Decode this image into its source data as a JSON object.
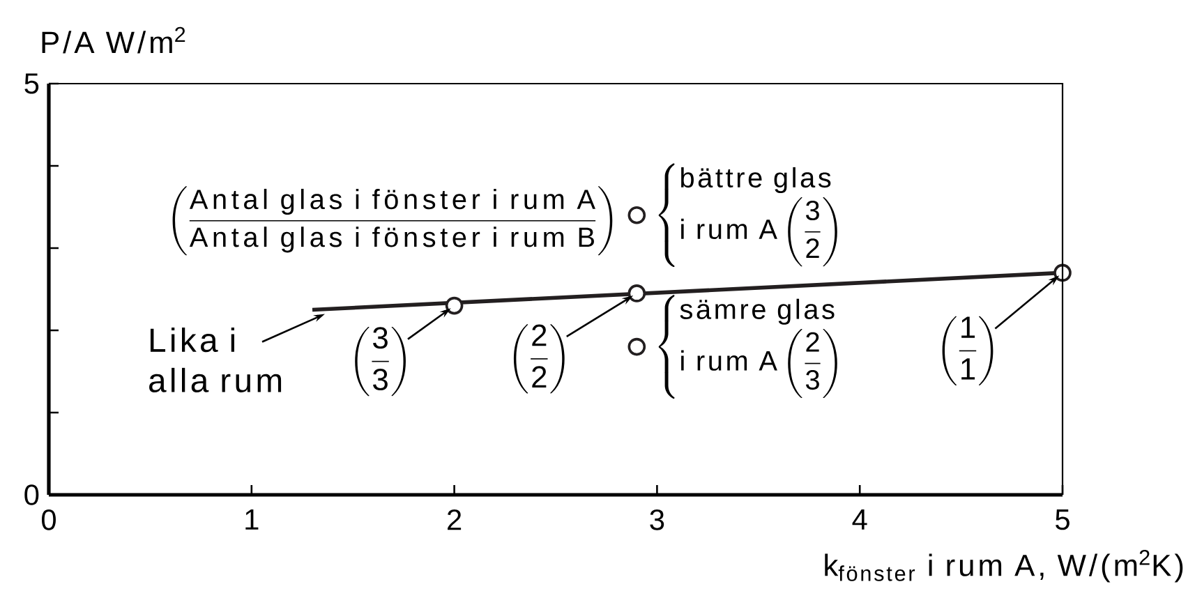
{
  "chart_data": {
    "type": "line",
    "ylabel": "P/A W/m$^{2}$",
    "xlabel": "k$_{fönster}$ i rum A, W/(m$^{2}$K)",
    "xlim": [
      0,
      5
    ],
    "ylim": [
      0,
      5
    ],
    "xticks": [
      0,
      1,
      2,
      3,
      4,
      5
    ],
    "yticks": [
      0,
      {
        "value": 1,
        "label": null
      },
      {
        "value": 2,
        "label": null
      },
      {
        "value": 3,
        "label": null
      },
      {
        "value": 4,
        "label": null
      },
      5
    ],
    "marker": "circle",
    "series": [
      {
        "marker": "none",
        "color": "#231f20",
        "x": [
          1.3,
          5
        ],
        "values": [
          2.25,
          2.7
        ]
      },
      {
        "type": "scatter",
        "color": "#231f20",
        "x": [
          2,
          2.9,
          5
        ],
        "values": [
          2.3,
          2.45,
          2.7
        ]
      },
      {
        "type": "scatter",
        "color": "#231f20",
        "x": [
          2.9
        ],
        "values": [
          3.4
        ]
      },
      {
        "type": "scatter",
        "color": "#231f20",
        "x": [
          2.9
        ],
        "values": [
          1.8
        ]
      }
    ],
    "annotations": [
      "\\left(\\frac{\\mbox{Antal glas i fönster i rum A}}{\\mbox{Antal glas i fönster i rum B}}\\right)",
      {
        "text": "\\left\\{\\begin{array}{@{}l@{}}\\mbox{bättre glas}\\\\\\mbox{i rum A}\\left(\\dfrac{\\mathsf{3}}{\\mathsf{2}}\\right)\\end{array}\\right.",
        "x": 2.9,
        "y": 3.4
      },
      {
        "text": "\\left\\{\\begin{array}{@{}l@{}}\\mbox{sämre glas}\\\\\\mbox{i rum A}\\left(\\dfrac{\\mathsf{2}}{\\mathsf{3}}\\right)\\end{array}\\right.",
        "x": 2.9,
        "y": 1.8
      },
      {
        "text": "Lika i alla rum",
        "x": 1.3,
        "y": 2.25
      },
      {
        "text": "\\left(\\frac{\\mathsf{3}}{\\mathsf{3}}\\right)",
        "x": 2,
        "y": 2.3
      },
      {
        "text": "\\left(\\frac{\\mathsf{2}}{\\mathsf{2}}\\right)",
        "x": 2.9,
        "y": 2.45
      },
      {
        "text": "\\left(\\frac{\\mathsf{1}}{\\mathsf{1}}\\right)",
        "x": 5,
        "y": 2.7
      }
    ]
  }
}
